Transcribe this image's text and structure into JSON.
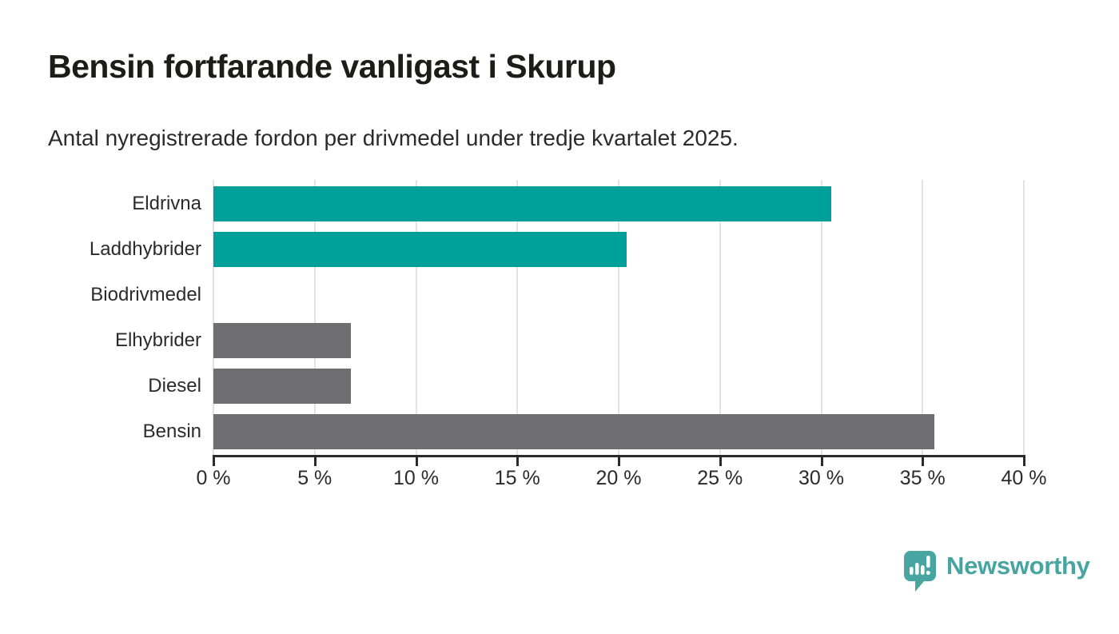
{
  "header": {
    "title": "Bensin fortfarande vanligast i Skurup",
    "subtitle": "Antal nyregistrerade fordon per drivmedel under tredje kvartalet 2025."
  },
  "chart_data": {
    "type": "bar",
    "orientation": "horizontal",
    "title": "Bensin fortfarande vanligast i Skurup",
    "subtitle": "Antal nyregistrerade fordon per drivmedel under tredje kvartalet 2025.",
    "categories": [
      "Eldrivna",
      "Laddhybrider",
      "Biodrivmedel",
      "Elhybrider",
      "Diesel",
      "Bensin"
    ],
    "values": [
      30.5,
      20.4,
      0,
      6.8,
      6.8,
      35.6
    ],
    "unit": "%",
    "xlim": [
      0,
      40
    ],
    "x_ticks": [
      0,
      5,
      10,
      15,
      20,
      25,
      30,
      35,
      40
    ],
    "x_tick_labels": [
      "0 %",
      "5 %",
      "10 %",
      "15 %",
      "20 %",
      "25 %",
      "30 %",
      "35 %",
      "40 %"
    ],
    "bar_colors": [
      "#00a09a",
      "#00a09a",
      "#6d6d72",
      "#6d6d72",
      "#6d6d72",
      "#6d6d72"
    ],
    "grid": "vertical-only",
    "legend": "none",
    "colors": {
      "accent_teal": "#00a09a",
      "neutral_gray": "#6d6d72",
      "gridline": "#e2e2e2",
      "axis": "#2b2b2b",
      "text": "#2b2b2b",
      "title_text": "#1c1c1a",
      "background": "#ffffff"
    }
  },
  "branding": {
    "logo_text": "Newsworthy",
    "logo_color": "#46a5a1",
    "logo_icon": "newsworthy-speech-bubble-barchart-icon"
  }
}
